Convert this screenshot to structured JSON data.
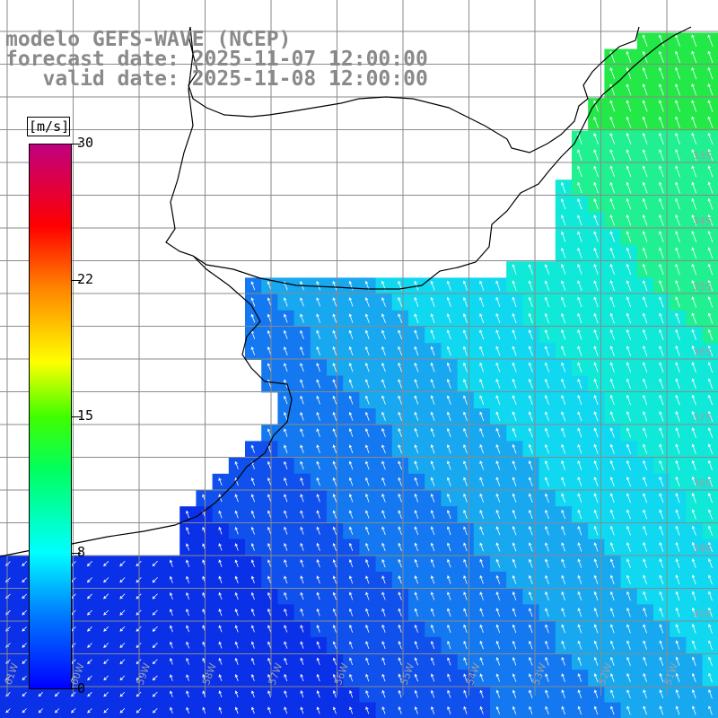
{
  "header": {
    "line1": "modelo GEFS-WAVE (NCEP)",
    "line2": "forecast date: 2025-11-07 12:00:00",
    "line3": "   valid date: 2025-11-08 12:00:00"
  },
  "colorbar": {
    "unit": "[m/s]",
    "ticks": [
      "30",
      "22",
      "15",
      "8",
      "0"
    ],
    "colors": [
      "#0000ff",
      "#00c0ff",
      "#00ffff",
      "#00ff00",
      "#ffff00",
      "#ff8000",
      "#ff0000",
      "#c00080"
    ]
  },
  "grid": {
    "lat_labels": [
      "33S",
      "34S",
      "35S",
      "36S",
      "37S",
      "38S",
      "39S",
      "40S"
    ],
    "lon_labels": [
      "61W",
      "60W",
      "59W",
      "58W",
      "57W",
      "56W",
      "55W",
      "54W",
      "53W",
      "52W",
      "51W"
    ]
  },
  "field": {
    "description_colors": {
      "calm": "#0a2ce8",
      "low": "#1060f0",
      "moderate": "#20a8f0",
      "high": "#10e0f0",
      "strong": "#20f090"
    }
  }
}
